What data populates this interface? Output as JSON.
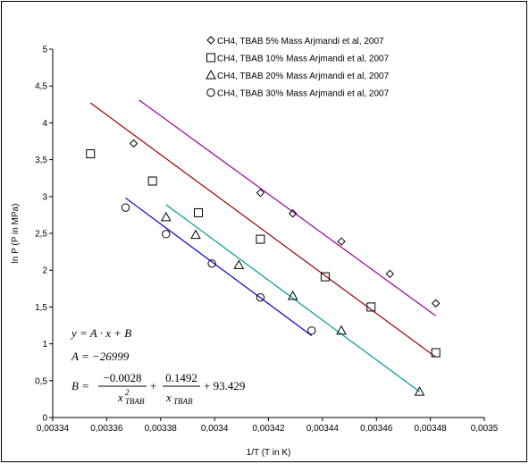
{
  "chart_data": {
    "type": "scatter",
    "xlabel": "1/T (T in K)",
    "ylabel": "ln P (P in MPa)",
    "xlim": [
      0.00334,
      0.0035
    ],
    "ylim": [
      0,
      5
    ],
    "x_ticks": [
      "0,00334",
      "0,00336",
      "0,00338",
      "0,0034",
      "0,00342",
      "0,00344",
      "0,00346",
      "0,00348",
      "0,0035"
    ],
    "y_ticks": [
      "0",
      "0,5",
      "1",
      "1,5",
      "2",
      "2,5",
      "3",
      "3,5",
      "4",
      "4,5",
      "5"
    ],
    "grid": false,
    "legend_position": "top-right",
    "series": [
      {
        "name": "CH4, TBAB 5% Mass Arjmandi et al, 2007",
        "marker": "diamond",
        "points": [
          [
            0.00337,
            3.72
          ],
          [
            0.003417,
            3.05
          ],
          [
            0.003429,
            2.77
          ],
          [
            0.003447,
            2.39
          ],
          [
            0.003465,
            1.95
          ],
          [
            0.003482,
            1.55
          ]
        ],
        "fit": {
          "x": [
            0.003372,
            0.003482
          ],
          "y": [
            4.31,
            1.38
          ],
          "color": "#990099"
        }
      },
      {
        "name": "CH4, TBAB 10% Mass Arjmandi et al, 2007",
        "marker": "square",
        "points": [
          [
            0.003354,
            3.58
          ],
          [
            0.003377,
            3.21
          ],
          [
            0.003394,
            2.78
          ],
          [
            0.003417,
            2.42
          ],
          [
            0.003441,
            1.91
          ],
          [
            0.003458,
            1.5
          ],
          [
            0.003482,
            0.88
          ]
        ],
        "fit": {
          "x": [
            0.003354,
            0.003482
          ],
          "y": [
            4.27,
            0.82
          ],
          "color": "#990000"
        }
      },
      {
        "name": "CH4, TBAB 20% Mass Arjmandi et al, 2007",
        "marker": "triangle",
        "points": [
          [
            0.003382,
            2.72
          ],
          [
            0.003393,
            2.48
          ],
          [
            0.003409,
            2.07
          ],
          [
            0.003429,
            1.65
          ],
          [
            0.003447,
            1.18
          ],
          [
            0.003476,
            0.35
          ]
        ],
        "fit": {
          "x": [
            0.003382,
            0.003476
          ],
          "y": [
            2.89,
            0.35
          ],
          "color": "#009999"
        }
      },
      {
        "name": "CH4, TBAB 30% Mass Arjmandi et al, 2007",
        "marker": "circle",
        "points": [
          [
            0.003367,
            2.85
          ],
          [
            0.003382,
            2.49
          ],
          [
            0.003399,
            2.09
          ],
          [
            0.003417,
            1.63
          ],
          [
            0.003436,
            1.18
          ]
        ],
        "fit": {
          "x": [
            0.003367,
            0.003436
          ],
          "y": [
            2.98,
            1.11
          ],
          "color": "#0000cc"
        }
      }
    ],
    "annotations": {
      "eq1": "y = A · x + B",
      "eq2": "A = −26999",
      "eq3_lhs": "B =",
      "eq3_num1": "−0.0028",
      "eq3_den1": "x",
      "eq3_den1_sup": "2",
      "eq3_den1_sub": "TBAB",
      "eq3_plus1": "+",
      "eq3_num2": "0.1492",
      "eq3_den2": "x",
      "eq3_den2_sub": "TBAB",
      "eq3_tail": "+ 93.429"
    }
  }
}
